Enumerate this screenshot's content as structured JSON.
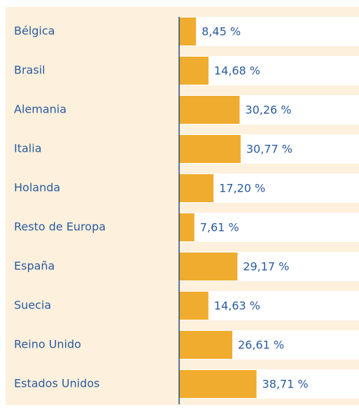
{
  "chart_data": {
    "type": "barh",
    "categories": [
      "Bélgica",
      "Brasil",
      "Alemania",
      "Italia",
      "Holanda",
      "Resto de Europa",
      "España",
      "Suecia",
      "Reino Unido",
      "Estados Unidos"
    ],
    "values": [
      8.45,
      14.68,
      30.26,
      30.77,
      17.2,
      7.61,
      29.17,
      14.63,
      26.61,
      38.71
    ],
    "value_labels": [
      "8,45 %",
      "14,68 %",
      "30,26 %",
      "30,77 %",
      "17,20 %",
      "7,61 %",
      "29,17 %",
      "14,63 %",
      "26,61 %",
      "38,71 %"
    ],
    "color": "#f0ac2e",
    "xlim": [
      0,
      90
    ]
  }
}
